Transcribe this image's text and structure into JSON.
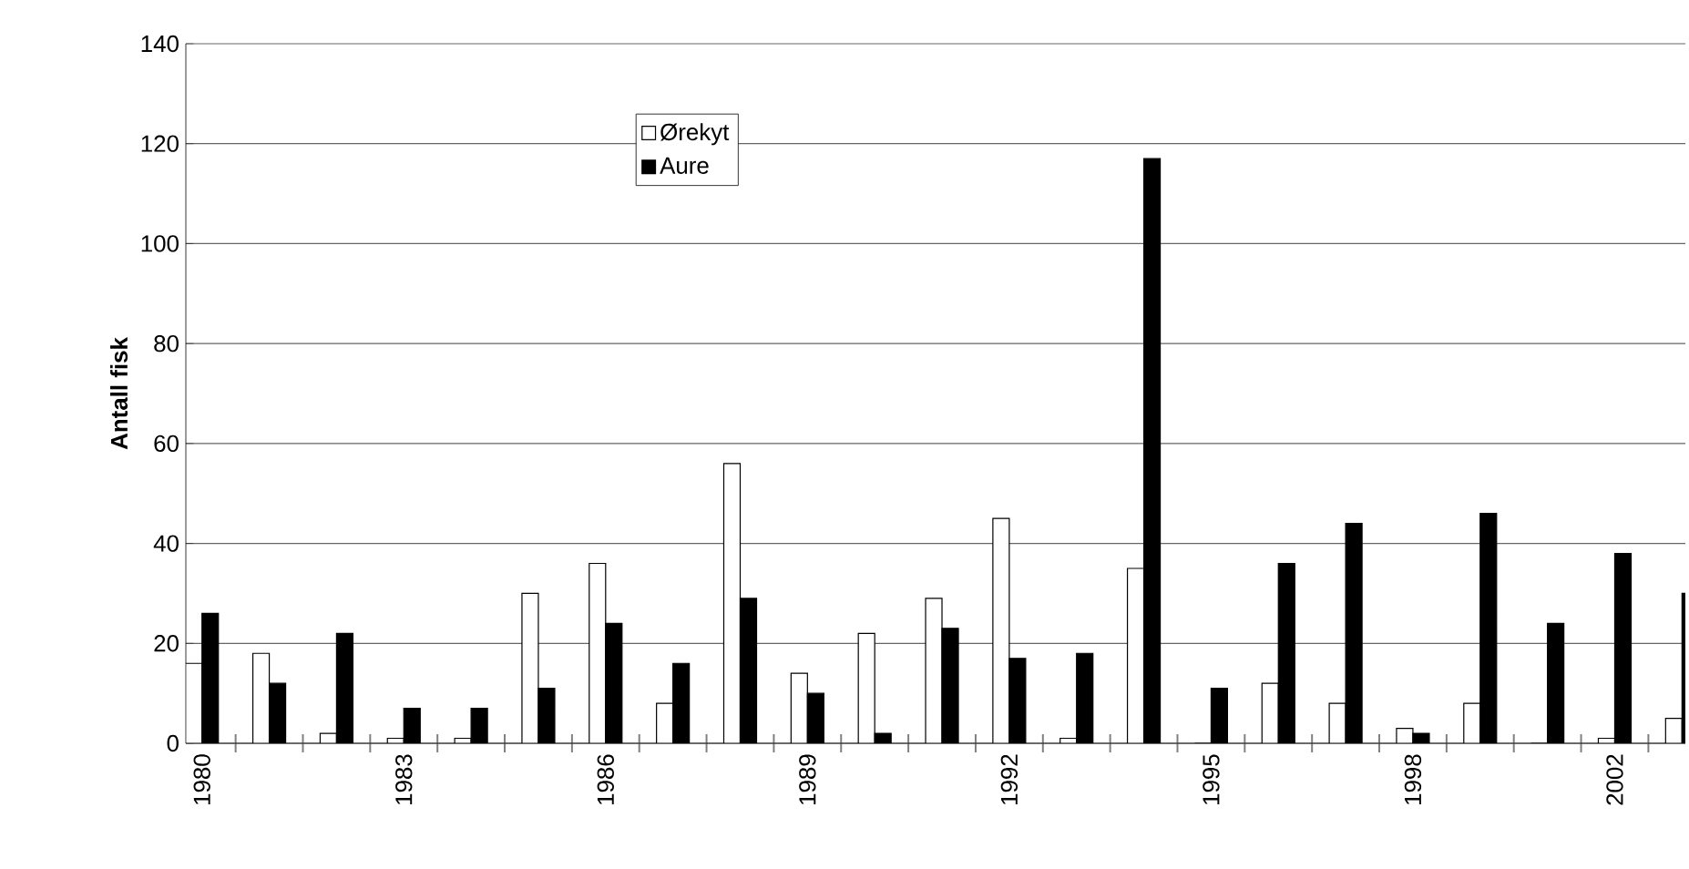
{
  "chart_data": {
    "type": "bar",
    "ylabel": "Antall fisk",
    "categories": [
      "1980",
      null,
      null,
      "1983",
      null,
      null,
      "1986",
      null,
      null,
      "1989",
      null,
      null,
      "1992",
      null,
      null,
      "1995",
      null,
      null,
      "1998",
      null,
      null,
      "2002",
      null
    ],
    "series": [
      {
        "name": "Ørekyt",
        "color": "#ffffff",
        "values": [
          16,
          18,
          2,
          1,
          1,
          30,
          36,
          8,
          56,
          14,
          22,
          29,
          45,
          1,
          35,
          0,
          12,
          8,
          3,
          8,
          0,
          1,
          5
        ]
      },
      {
        "name": "Aure",
        "color": "#000000",
        "values": [
          26,
          12,
          22,
          7,
          7,
          11,
          24,
          16,
          29,
          10,
          2,
          23,
          17,
          18,
          117,
          11,
          36,
          44,
          2,
          46,
          24,
          38,
          30
        ]
      }
    ],
    "ylim": [
      0,
      140
    ],
    "yticks": [
      0,
      20,
      40,
      60,
      80,
      100,
      120,
      140
    ],
    "grid": "y",
    "legend": "top left"
  }
}
